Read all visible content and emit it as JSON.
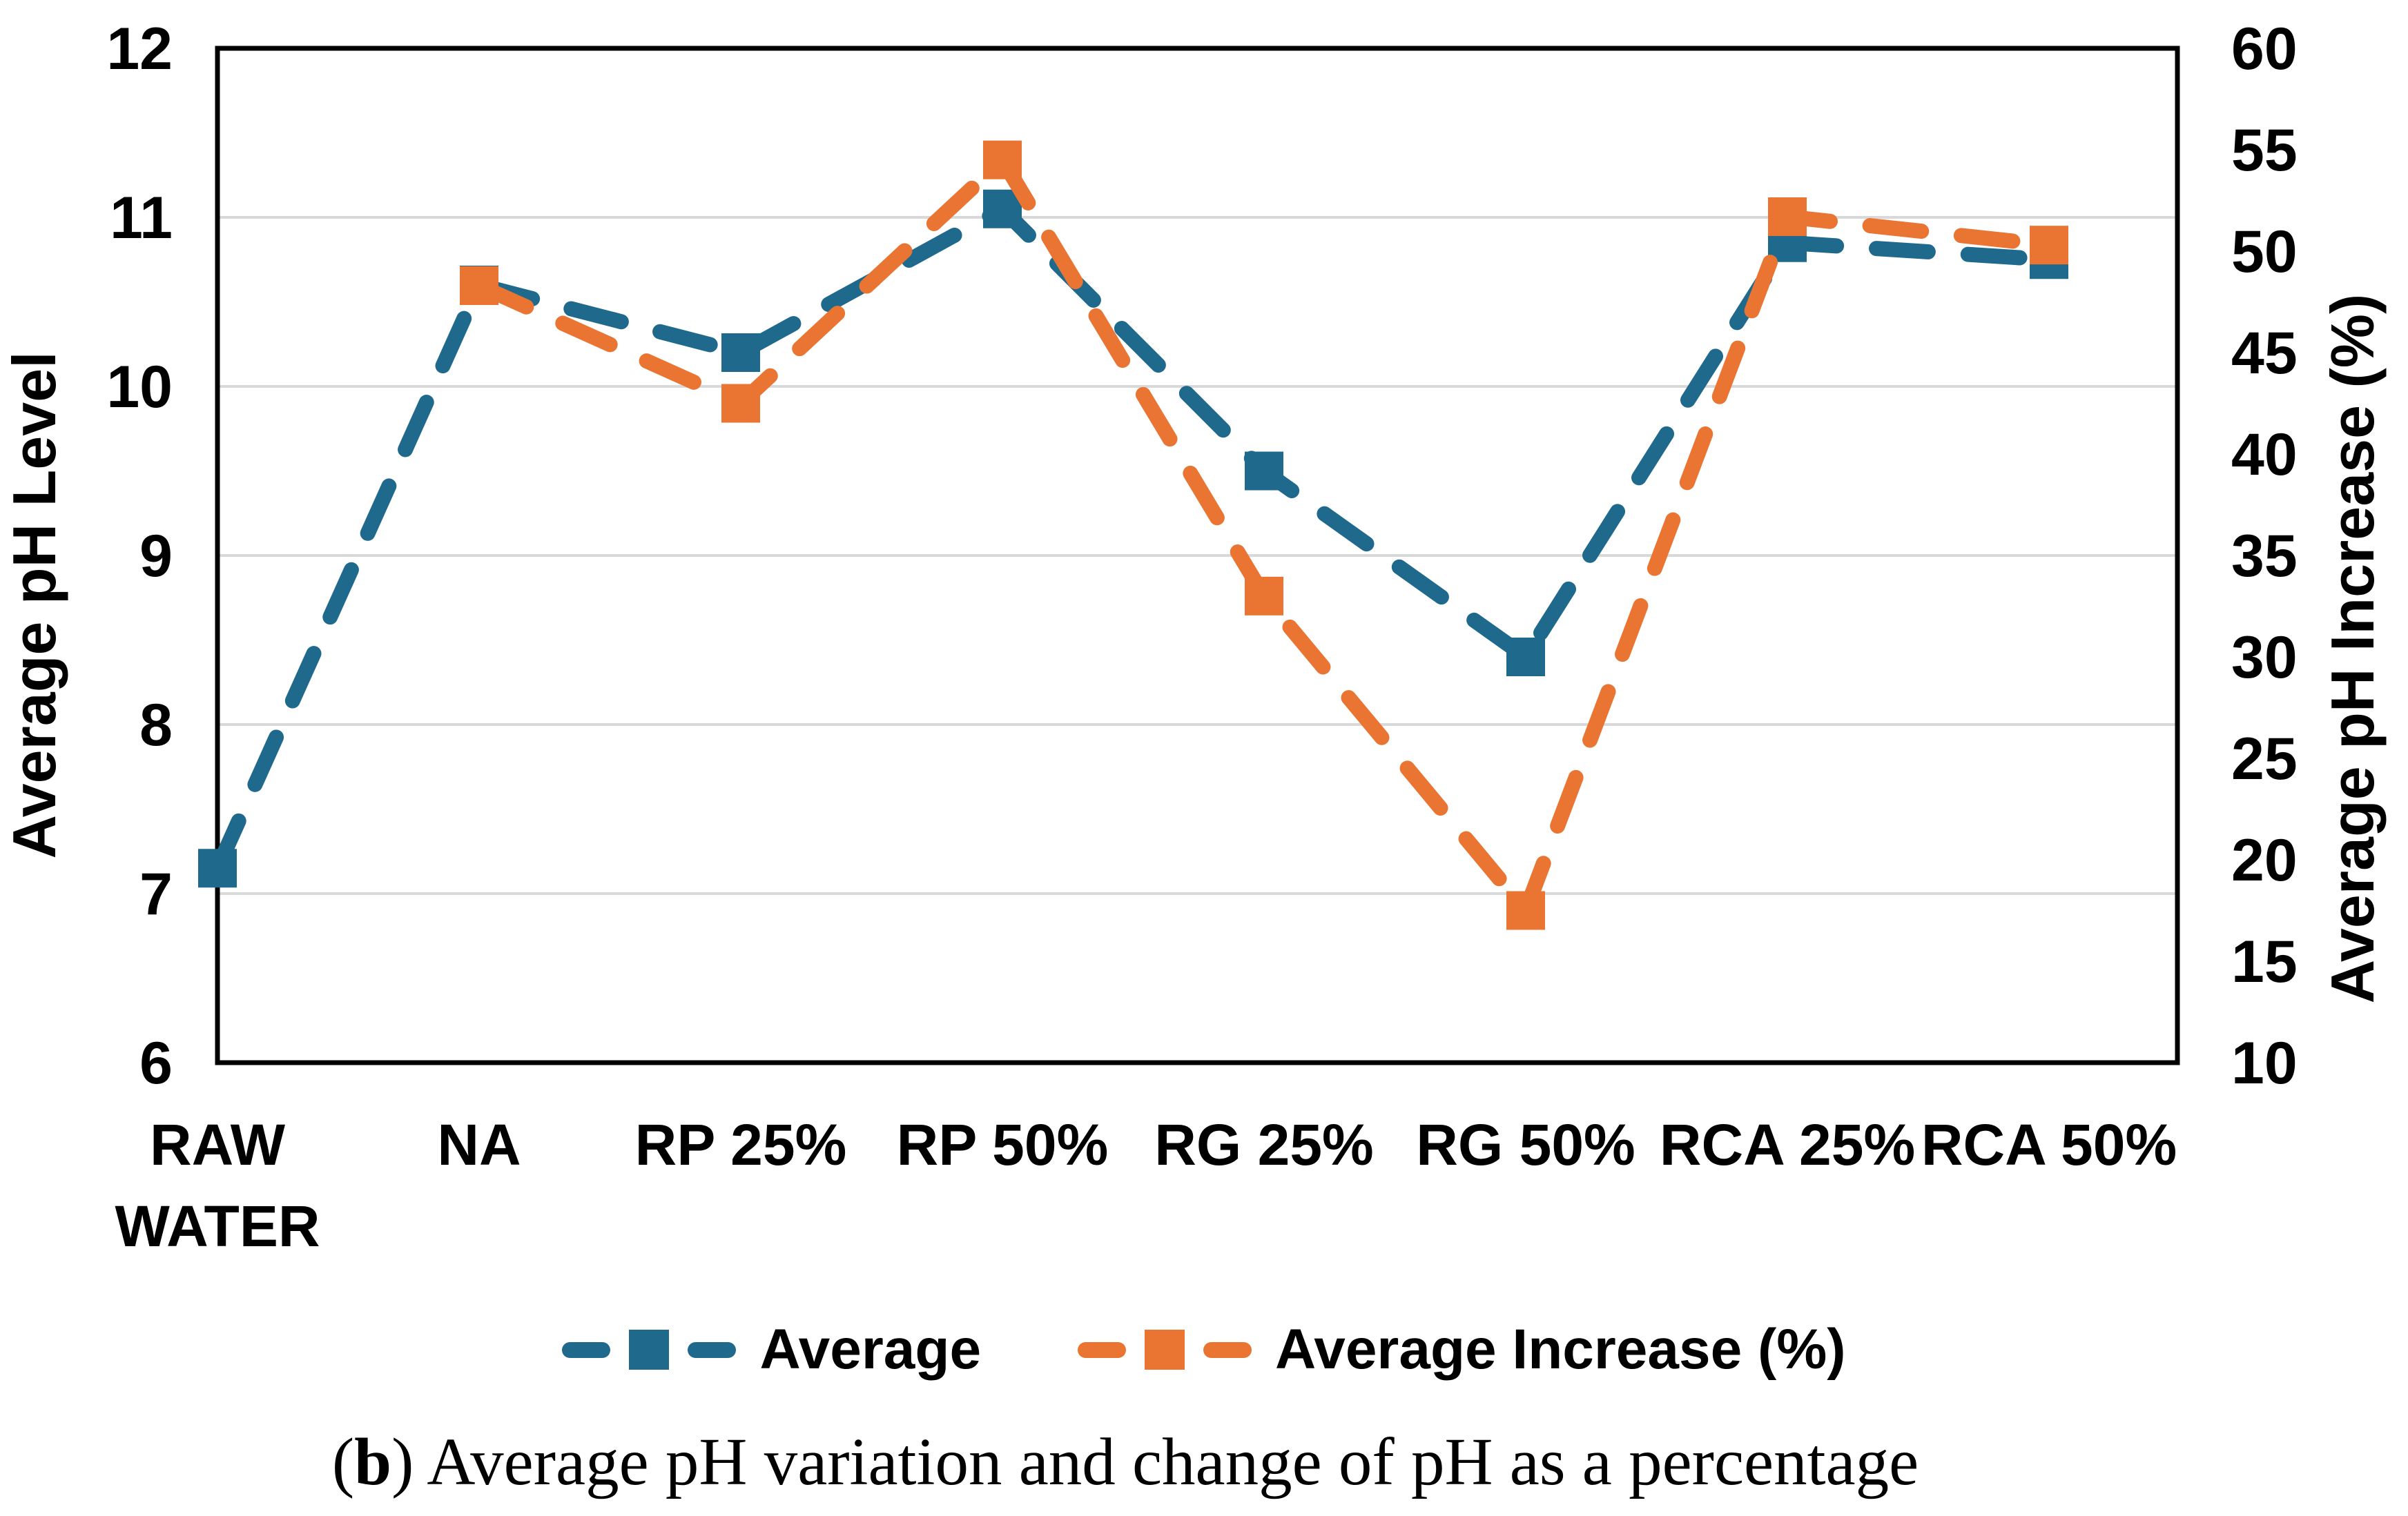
{
  "chart_data": {
    "type": "line",
    "line_style": "dashed",
    "marker": "square",
    "grid": true,
    "legend_position": "bottom",
    "categories": [
      "RAW\nWATER",
      "NA",
      "RP 25%",
      "RP 50%",
      "RG 25%",
      "RG 50%",
      "RCA 25%",
      "RCA 50%"
    ],
    "series": [
      {
        "name": "Average",
        "axis": "left",
        "color": "#1F6A8C",
        "values": [
          7.15,
          10.6,
          10.2,
          11.05,
          9.5,
          8.4,
          10.85,
          10.75
        ]
      },
      {
        "name": "Average Increase (%)",
        "axis": "right",
        "color": "#EA7431",
        "values": [
          null,
          48.3,
          42.5,
          54.5,
          33,
          17.5,
          51.7,
          50.3
        ]
      }
    ],
    "left_axis": {
      "title": "Average pH Level",
      "min": 6,
      "max": 12,
      "step": 1
    },
    "right_axis": {
      "title": "Average pH Increase (%)",
      "min": 10,
      "max": 60,
      "step": 5
    }
  },
  "legend": {
    "items": [
      {
        "label": "Average",
        "color": "#1F6A8C"
      },
      {
        "label": "Average Increase (%)",
        "color": "#EA7431"
      }
    ]
  },
  "caption": {
    "prefix": "(",
    "bold_part": "b",
    "suffix": ") Average pH variation and change of pH as a percentage"
  },
  "colors": {
    "series_blue": "#1F6A8C",
    "series_orange": "#EA7431",
    "gridline": "#D9D9D9",
    "axis_border": "#000000",
    "text": "#000000"
  }
}
